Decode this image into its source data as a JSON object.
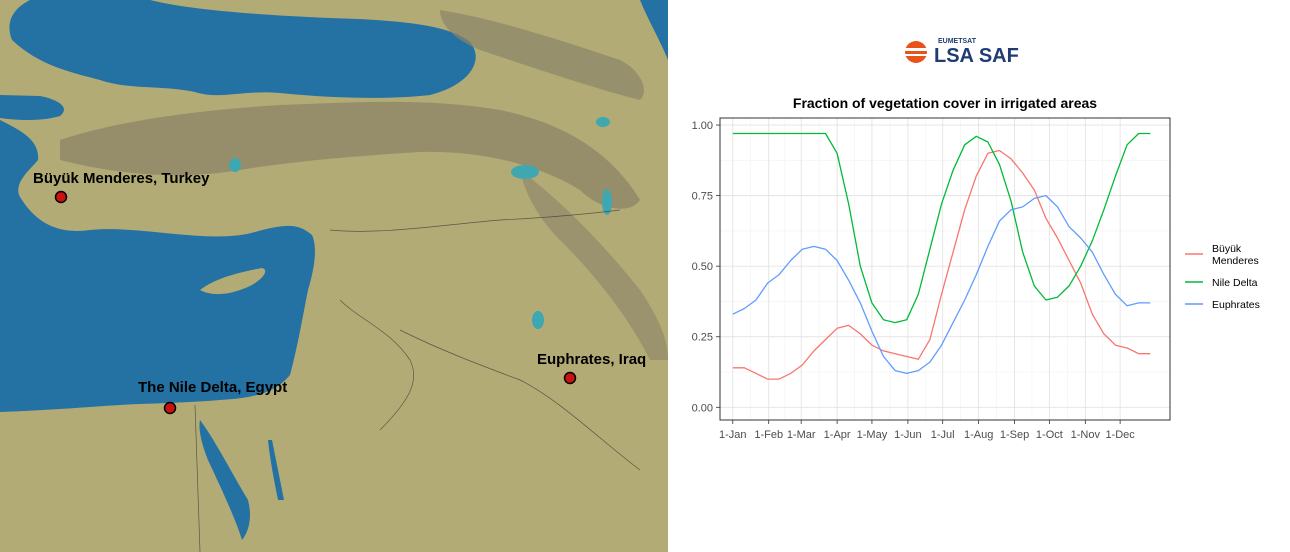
{
  "logo": {
    "org": "EUMETSAT",
    "name": "LSA SAF",
    "accent": "#e8531a",
    "text_color": "#1f3c73"
  },
  "map": {
    "colors": {
      "sea": "#2471a3",
      "land": "#b2ab75",
      "mountain": "#8c8468",
      "lake": "#3fa7b0"
    },
    "locations": [
      {
        "name": "Büyük Menderes, Turkey"
      },
      {
        "name": "The Nile Delta, Egypt"
      },
      {
        "name": "Euphrates, Iraq"
      }
    ],
    "marker_color": "#cc1111"
  },
  "chart_data": {
    "type": "line",
    "title": "Fraction of vegetation cover in irrigated areas",
    "xlabel": "",
    "ylabel": "",
    "x_ticks": [
      "1-Jan",
      "1-Feb",
      "1-Mar",
      "1-Apr",
      "1-May",
      "1-Jun",
      "1-Jul",
      "1-Aug",
      "1-Sep",
      "1-Oct",
      "1-Nov",
      "1-Dec"
    ],
    "x_tick_days": [
      1,
      32,
      60,
      91,
      121,
      152,
      182,
      213,
      244,
      274,
      305,
      335
    ],
    "xlim": [
      -10,
      378
    ],
    "ylim": [
      -0.045,
      1.025
    ],
    "y_ticks": [
      "0.00",
      "0.25",
      "0.50",
      "0.75",
      "1.00"
    ],
    "grid": true,
    "legend_position": "right",
    "series": [
      {
        "name": "Büyük Menderes",
        "color": "#f8766d",
        "x": [
          "1-Jan",
          "11-Jan",
          "21-Jan",
          "31-Jan",
          "10-Feb",
          "20-Feb",
          "2-Mar",
          "12-Mar",
          "22-Mar",
          "1-Apr",
          "11-Apr",
          "21-Apr",
          "1-May",
          "11-May",
          "21-May",
          "31-May",
          "10-Jun",
          "20-Jun",
          "30-Jun",
          "10-Jul",
          "20-Jul",
          "30-Jul",
          "9-Aug",
          "19-Aug",
          "29-Aug",
          "8-Sep",
          "18-Sep",
          "28-Sep",
          "8-Oct",
          "18-Oct",
          "28-Oct",
          "7-Nov",
          "17-Nov",
          "27-Nov",
          "7-Dec",
          "17-Dec",
          "27-Dec"
        ],
        "y": [
          0.14,
          0.14,
          0.12,
          0.1,
          0.1,
          0.12,
          0.15,
          0.2,
          0.24,
          0.28,
          0.29,
          0.26,
          0.22,
          0.2,
          0.19,
          0.18,
          0.17,
          0.24,
          0.4,
          0.55,
          0.7,
          0.82,
          0.9,
          0.91,
          0.88,
          0.83,
          0.77,
          0.67,
          0.6,
          0.52,
          0.44,
          0.33,
          0.26,
          0.22,
          0.21,
          0.19,
          0.19
        ]
      },
      {
        "name": "Nile Delta",
        "color": "#00ba38",
        "x": [
          "1-Jan",
          "11-Jan",
          "21-Jan",
          "31-Jan",
          "10-Feb",
          "20-Feb",
          "2-Mar",
          "12-Mar",
          "22-Mar",
          "1-Apr",
          "11-Apr",
          "21-Apr",
          "1-May",
          "11-May",
          "21-May",
          "31-May",
          "10-Jun",
          "20-Jun",
          "30-Jun",
          "10-Jul",
          "20-Jul",
          "30-Jul",
          "9-Aug",
          "19-Aug",
          "29-Aug",
          "8-Sep",
          "18-Sep",
          "28-Sep",
          "8-Oct",
          "18-Oct",
          "28-Oct",
          "7-Nov",
          "17-Nov",
          "27-Nov",
          "7-Dec",
          "17-Dec",
          "27-Dec"
        ],
        "y": [
          0.97,
          0.97,
          0.97,
          0.97,
          0.97,
          0.97,
          0.97,
          0.97,
          0.97,
          0.9,
          0.72,
          0.5,
          0.37,
          0.31,
          0.3,
          0.31,
          0.4,
          0.56,
          0.72,
          0.84,
          0.93,
          0.96,
          0.94,
          0.86,
          0.73,
          0.55,
          0.43,
          0.38,
          0.39,
          0.43,
          0.5,
          0.59,
          0.7,
          0.82,
          0.93,
          0.97,
          0.97
        ]
      },
      {
        "name": "Euphrates",
        "color": "#619cff",
        "x": [
          "1-Jan",
          "11-Jan",
          "21-Jan",
          "31-Jan",
          "10-Feb",
          "20-Feb",
          "2-Mar",
          "12-Mar",
          "22-Mar",
          "1-Apr",
          "11-Apr",
          "21-Apr",
          "1-May",
          "11-May",
          "21-May",
          "31-May",
          "10-Jun",
          "20-Jun",
          "30-Jun",
          "10-Jul",
          "20-Jul",
          "30-Jul",
          "9-Aug",
          "19-Aug",
          "29-Aug",
          "8-Sep",
          "18-Sep",
          "28-Sep",
          "8-Oct",
          "18-Oct",
          "28-Oct",
          "7-Nov",
          "17-Nov",
          "27-Nov",
          "7-Dec",
          "17-Dec",
          "27-Dec"
        ],
        "y": [
          0.33,
          0.35,
          0.38,
          0.44,
          0.47,
          0.52,
          0.56,
          0.57,
          0.56,
          0.52,
          0.45,
          0.37,
          0.27,
          0.18,
          0.13,
          0.12,
          0.13,
          0.16,
          0.22,
          0.3,
          0.38,
          0.47,
          0.57,
          0.66,
          0.7,
          0.71,
          0.74,
          0.75,
          0.71,
          0.64,
          0.6,
          0.55,
          0.47,
          0.4,
          0.36,
          0.37,
          0.37
        ]
      }
    ]
  }
}
